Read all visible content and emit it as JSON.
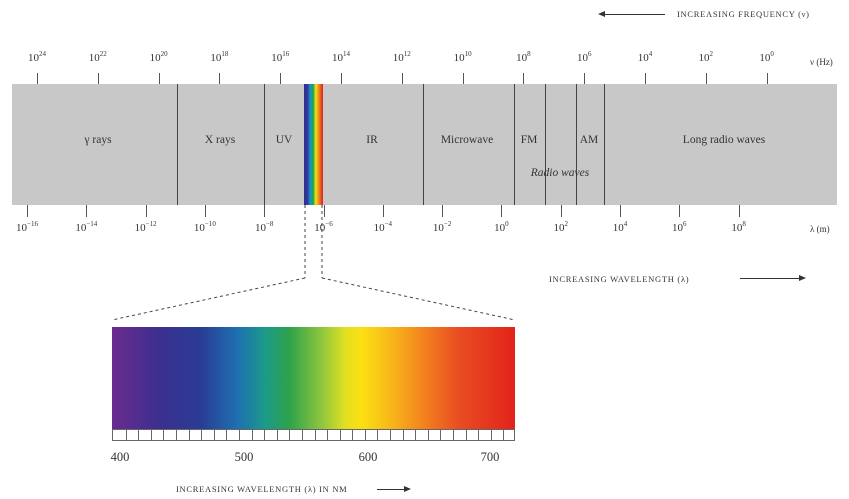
{
  "frequency_axis": {
    "heading": "INCREASING FREQUENCY (ν)",
    "unit": "ν (Hz)",
    "ticks": [
      {
        "base": "10",
        "exp": "24"
      },
      {
        "base": "10",
        "exp": "22"
      },
      {
        "base": "10",
        "exp": "20"
      },
      {
        "base": "10",
        "exp": "18"
      },
      {
        "base": "10",
        "exp": "16"
      },
      {
        "base": "10",
        "exp": "14"
      },
      {
        "base": "10",
        "exp": "12"
      },
      {
        "base": "10",
        "exp": "10"
      },
      {
        "base": "10",
        "exp": "8"
      },
      {
        "base": "10",
        "exp": "6"
      },
      {
        "base": "10",
        "exp": "4"
      },
      {
        "base": "10",
        "exp": "2"
      },
      {
        "base": "10",
        "exp": "0"
      }
    ]
  },
  "wavelength_axis": {
    "heading": "INCREASING WAVELENGTH (λ)",
    "unit": "λ (m)",
    "ticks": [
      {
        "base": "10",
        "exp": "−16"
      },
      {
        "base": "10",
        "exp": "−14"
      },
      {
        "base": "10",
        "exp": "−12"
      },
      {
        "base": "10",
        "exp": "−10"
      },
      {
        "base": "10",
        "exp": "−8"
      },
      {
        "base": "10",
        "exp": "−6"
      },
      {
        "base": "10",
        "exp": "−4"
      },
      {
        "base": "10",
        "exp": "−2"
      },
      {
        "base": "10",
        "exp": "0"
      },
      {
        "base": "10",
        "exp": "2"
      },
      {
        "base": "10",
        "exp": "4"
      },
      {
        "base": "10",
        "exp": "6"
      },
      {
        "base": "10",
        "exp": "8"
      }
    ]
  },
  "regions": {
    "gamma": "γ rays",
    "xray": "X rays",
    "uv": "UV",
    "ir": "IR",
    "microwave": "Microwave",
    "fm": "FM",
    "am": "AM",
    "long_radio": "Long radio waves",
    "radio_waves": "Radio waves"
  },
  "visible_spectrum": {
    "heading": "INCREASING WAVELENGTH (λ) IN NM",
    "nm_labels": [
      "400",
      "500",
      "600",
      "700"
    ]
  },
  "colors": {
    "band": "#c8c8c8",
    "text": "#333333"
  }
}
